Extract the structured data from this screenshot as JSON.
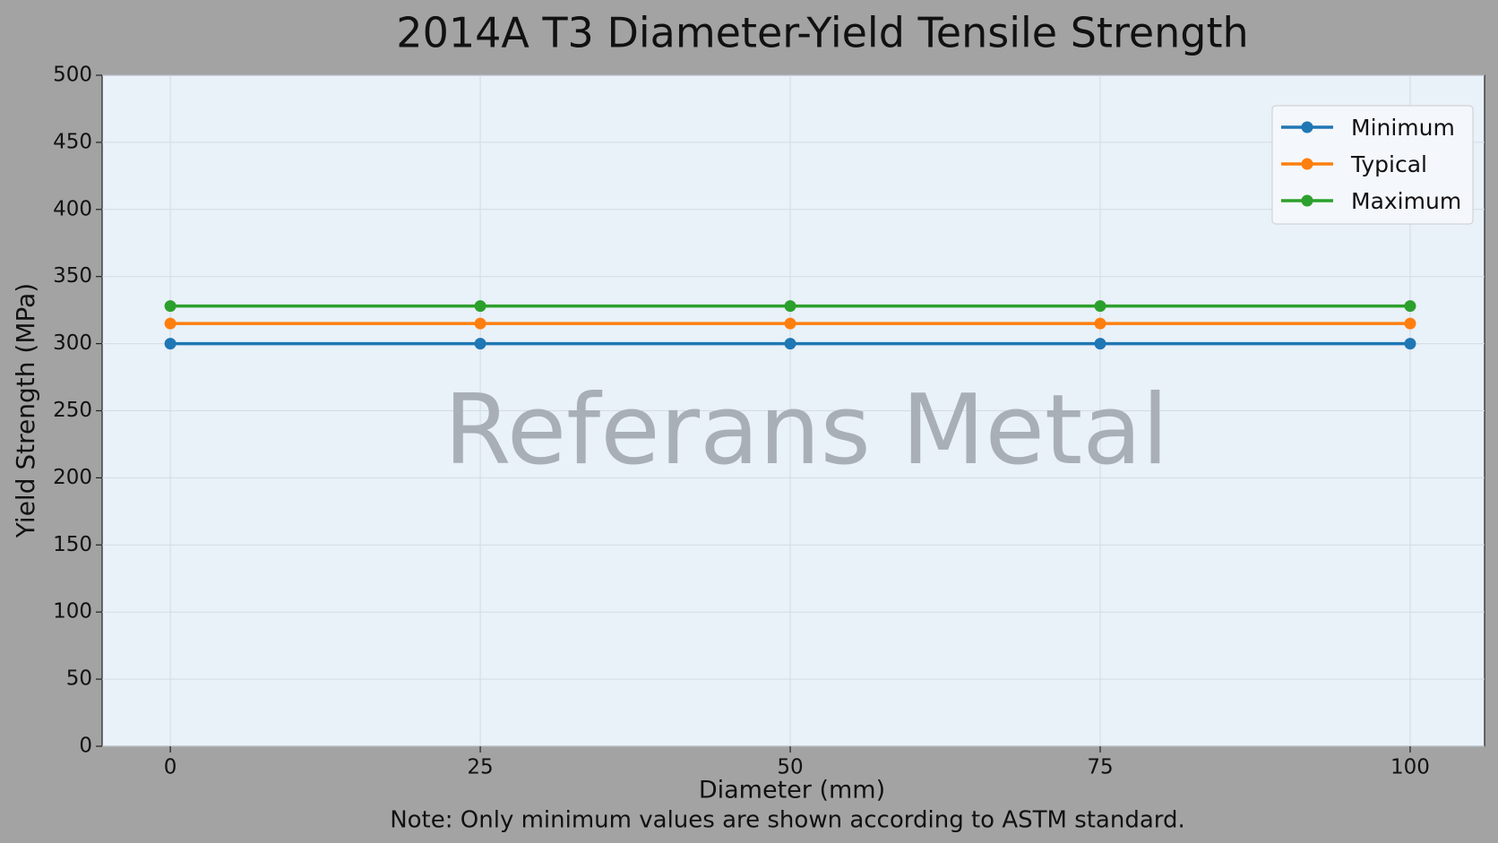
{
  "chart_data": {
    "type": "line",
    "title": "2014A T3 Diameter-Yield Tensile Strength",
    "x_label": "Diameter (mm)",
    "y_label": "Yield Strength (MPa)",
    "note": "Note: Only minimum values are shown according to ASTM standard.",
    "watermark": "Referans Metal",
    "x": [
      0,
      25,
      50,
      75,
      100
    ],
    "series": [
      {
        "name": "Minimum",
        "color": "#1f77b4",
        "values": [
          300,
          300,
          300,
          300,
          300
        ]
      },
      {
        "name": "Typical",
        "color": "#ff7f0e",
        "values": [
          315,
          315,
          315,
          315,
          315
        ]
      },
      {
        "name": "Maximum",
        "color": "#2ca02c",
        "values": [
          328,
          328,
          328,
          328,
          328
        ]
      }
    ],
    "xlim": [
      -5.5,
      106
    ],
    "xticks": [
      0,
      25,
      50,
      75,
      100
    ],
    "ylim": [
      0,
      500
    ],
    "yticks": [
      0,
      50,
      100,
      150,
      200,
      250,
      300,
      350,
      400,
      450,
      500
    ],
    "grid": true,
    "legend": "upper right"
  }
}
